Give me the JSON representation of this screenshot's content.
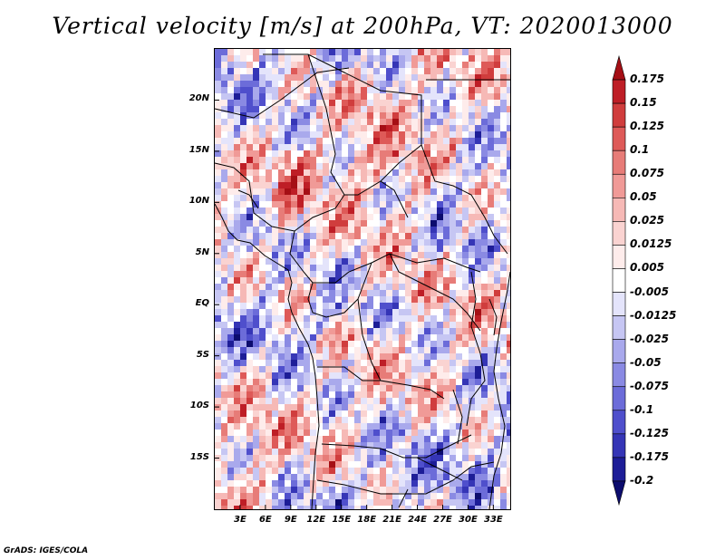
{
  "title": "Vertical velocity [m/s] at 200hPa, VT: 2020013000",
  "footer": "GrADS: IGES/COLA",
  "map": {
    "lon_range": [
      0,
      35
    ],
    "lat_range": [
      -20,
      25
    ],
    "lat_ticks": [
      "20N",
      "15N",
      "10N",
      "5N",
      "EQ",
      "5S",
      "10S",
      "15S"
    ],
    "lon_ticks": [
      "3E",
      "6E",
      "9E",
      "12E",
      "15E",
      "18E",
      "21E",
      "24E",
      "27E",
      "30E",
      "33E"
    ]
  },
  "colorbar": {
    "labels": [
      "0.175",
      "0.15",
      "0.125",
      "0.1",
      "0.075",
      "0.05",
      "0.025",
      "0.0125",
      "0.005",
      "-0.005",
      "-0.0125",
      "-0.025",
      "-0.05",
      "-0.075",
      "-0.1",
      "-0.125",
      "-0.175",
      "-0.2"
    ],
    "colors": [
      "#a50f15",
      "#be1e26",
      "#d03d3d",
      "#de5a58",
      "#e77c78",
      "#f09a97",
      "#f6b9b6",
      "#fad3d1",
      "#feeceb",
      "#ffffff",
      "#e4e4fb",
      "#c6c6f3",
      "#a9a9ec",
      "#8a8ae3",
      "#6c6cd9",
      "#4f4fcc",
      "#3535b6",
      "#1d1d97",
      "#0c0c6e"
    ]
  }
}
